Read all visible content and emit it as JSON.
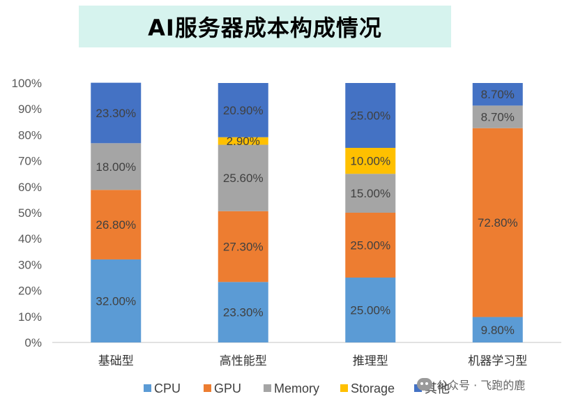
{
  "chart_data": {
    "type": "bar",
    "stacked": "percent",
    "title": "AI服务器成本构成情况",
    "categories": [
      "基础型",
      "高性能型",
      "推理型",
      "机器学习型"
    ],
    "series": [
      {
        "name": "CPU",
        "color": "#5b9bd5",
        "values": [
          32.0,
          23.3,
          25.0,
          9.8
        ],
        "labels": [
          "32.00%",
          "23.30%",
          "25.00%",
          "9.80%"
        ]
      },
      {
        "name": "GPU",
        "color": "#ed7d31",
        "values": [
          26.8,
          27.3,
          25.0,
          72.8
        ],
        "labels": [
          "26.80%",
          "27.30%",
          "25.00%",
          "72.80%"
        ]
      },
      {
        "name": "Memory",
        "color": "#a5a5a5",
        "values": [
          18.0,
          25.6,
          15.0,
          8.7
        ],
        "labels": [
          "18.00%",
          "25.60%",
          "15.00%",
          "8.70%"
        ]
      },
      {
        "name": "Storage",
        "color": "#ffc000",
        "values": [
          0,
          2.9,
          10.0,
          0
        ],
        "labels": [
          "",
          "2.90%",
          "10.00%",
          ""
        ]
      },
      {
        "name": "其他",
        "color": "#4472c4",
        "values": [
          23.3,
          20.9,
          25.0,
          8.7
        ],
        "labels": [
          "23.30%",
          "20.90%",
          "25.00%",
          "8.70%"
        ]
      }
    ],
    "yticks": [
      "0%",
      "10%",
      "20%",
      "30%",
      "40%",
      "50%",
      "60%",
      "70%",
      "80%",
      "90%",
      "100%"
    ],
    "ylim": [
      0,
      100
    ],
    "grid": false,
    "legend_position": "bottom"
  },
  "watermark": {
    "text": "公众号 · 飞跑的鹿",
    "icon": "wechat-icon"
  }
}
